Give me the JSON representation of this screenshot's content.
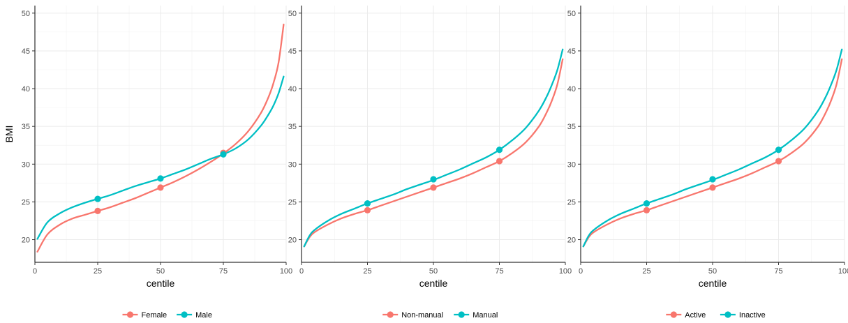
{
  "chart_data": [
    {
      "type": "line",
      "xlabel": "centile",
      "ylabel": "BMI",
      "xlim": [
        0,
        100
      ],
      "ylim": [
        17,
        51
      ],
      "x_ticks": [
        0,
        25,
        50,
        75,
        100
      ],
      "y_ticks": [
        20,
        25,
        30,
        35,
        40,
        45,
        50
      ],
      "grid": true,
      "legend_position": "bottom",
      "series": [
        {
          "name": "Female",
          "color": "#F8766D",
          "points": [
            [
              1,
              18.4
            ],
            [
              5,
              20.7
            ],
            [
              10,
              22.0
            ],
            [
              15,
              22.8
            ],
            [
              20,
              23.3
            ],
            [
              25,
              23.8
            ],
            [
              30,
              24.3
            ],
            [
              35,
              24.9
            ],
            [
              40,
              25.5
            ],
            [
              45,
              26.2
            ],
            [
              50,
              26.9
            ],
            [
              55,
              27.6
            ],
            [
              60,
              28.4
            ],
            [
              65,
              29.3
            ],
            [
              70,
              30.3
            ],
            [
              75,
              31.4
            ],
            [
              80,
              32.7
            ],
            [
              85,
              34.4
            ],
            [
              90,
              36.8
            ],
            [
              93,
              38.9
            ],
            [
              95,
              40.8
            ],
            [
              97,
              43.5
            ],
            [
              99,
              48.5
            ]
          ],
          "markers": [
            [
              25,
              23.8
            ],
            [
              50,
              26.9
            ],
            [
              75,
              31.5
            ]
          ]
        },
        {
          "name": "Male",
          "color": "#00BFC4",
          "points": [
            [
              1,
              20.1
            ],
            [
              5,
              22.3
            ],
            [
              10,
              23.5
            ],
            [
              15,
              24.3
            ],
            [
              20,
              24.9
            ],
            [
              25,
              25.4
            ],
            [
              30,
              25.9
            ],
            [
              35,
              26.5
            ],
            [
              40,
              27.1
            ],
            [
              45,
              27.6
            ],
            [
              50,
              28.1
            ],
            [
              55,
              28.7
            ],
            [
              60,
              29.3
            ],
            [
              65,
              30.0
            ],
            [
              70,
              30.7
            ],
            [
              75,
              31.3
            ],
            [
              80,
              32.1
            ],
            [
              85,
              33.3
            ],
            [
              90,
              35.1
            ],
            [
              93,
              36.6
            ],
            [
              95,
              37.8
            ],
            [
              97,
              39.4
            ],
            [
              99,
              41.6
            ]
          ],
          "markers": [
            [
              25,
              25.4
            ],
            [
              50,
              28.1
            ],
            [
              75,
              31.3
            ]
          ]
        }
      ]
    },
    {
      "type": "line",
      "xlabel": "centile",
      "ylabel": "",
      "xlim": [
        0,
        100
      ],
      "ylim": [
        17,
        51
      ],
      "x_ticks": [
        0,
        25,
        50,
        75,
        100
      ],
      "y_ticks": [
        20,
        25,
        30,
        35,
        40,
        45,
        50
      ],
      "grid": true,
      "legend_position": "bottom",
      "series": [
        {
          "name": "Non-manual",
          "color": "#F8766D",
          "points": [
            [
              1,
              19.1
            ],
            [
              3,
              20.3
            ],
            [
              5,
              21.0
            ],
            [
              10,
              22.0
            ],
            [
              15,
              22.8
            ],
            [
              20,
              23.4
            ],
            [
              25,
              23.9
            ],
            [
              30,
              24.5
            ],
            [
              35,
              25.1
            ],
            [
              40,
              25.7
            ],
            [
              45,
              26.3
            ],
            [
              50,
              26.9
            ],
            [
              55,
              27.5
            ],
            [
              60,
              28.1
            ],
            [
              65,
              28.8
            ],
            [
              70,
              29.6
            ],
            [
              75,
              30.4
            ],
            [
              80,
              31.5
            ],
            [
              85,
              32.9
            ],
            [
              90,
              35.0
            ],
            [
              93,
              36.9
            ],
            [
              95,
              38.5
            ],
            [
              97,
              40.6
            ],
            [
              99,
              43.9
            ]
          ],
          "markers": [
            [
              25,
              23.9
            ],
            [
              50,
              26.9
            ],
            [
              75,
              30.4
            ]
          ]
        },
        {
          "name": "Manual",
          "color": "#00BFC4",
          "points": [
            [
              1,
              19.1
            ],
            [
              3,
              20.5
            ],
            [
              5,
              21.3
            ],
            [
              10,
              22.5
            ],
            [
              15,
              23.4
            ],
            [
              20,
              24.1
            ],
            [
              25,
              24.8
            ],
            [
              30,
              25.4
            ],
            [
              35,
              26.0
            ],
            [
              40,
              26.7
            ],
            [
              45,
              27.3
            ],
            [
              50,
              27.9
            ],
            [
              55,
              28.6
            ],
            [
              60,
              29.3
            ],
            [
              65,
              30.1
            ],
            [
              70,
              30.9
            ],
            [
              75,
              31.9
            ],
            [
              80,
              33.2
            ],
            [
              85,
              34.8
            ],
            [
              90,
              37.1
            ],
            [
              93,
              39.0
            ],
            [
              95,
              40.6
            ],
            [
              97,
              42.5
            ],
            [
              99,
              45.2
            ]
          ],
          "markers": [
            [
              25,
              24.8
            ],
            [
              50,
              28.0
            ],
            [
              75,
              31.9
            ]
          ]
        }
      ]
    },
    {
      "type": "line",
      "xlabel": "centile",
      "ylabel": "",
      "xlim": [
        0,
        100
      ],
      "ylim": [
        17,
        51
      ],
      "x_ticks": [
        0,
        25,
        50,
        75,
        100
      ],
      "y_ticks": [
        20,
        25,
        30,
        35,
        40,
        45,
        50
      ],
      "grid": true,
      "legend_position": "bottom",
      "series": [
        {
          "name": "Active",
          "color": "#F8766D",
          "points": [
            [
              1,
              19.1
            ],
            [
              3,
              20.3
            ],
            [
              5,
              21.0
            ],
            [
              10,
              22.0
            ],
            [
              15,
              22.8
            ],
            [
              20,
              23.4
            ],
            [
              25,
              23.9
            ],
            [
              30,
              24.5
            ],
            [
              35,
              25.1
            ],
            [
              40,
              25.7
            ],
            [
              45,
              26.3
            ],
            [
              50,
              26.9
            ],
            [
              55,
              27.5
            ],
            [
              60,
              28.1
            ],
            [
              65,
              28.8
            ],
            [
              70,
              29.6
            ],
            [
              75,
              30.4
            ],
            [
              80,
              31.5
            ],
            [
              85,
              32.9
            ],
            [
              90,
              35.0
            ],
            [
              93,
              36.9
            ],
            [
              95,
              38.5
            ],
            [
              97,
              40.6
            ],
            [
              99,
              43.9
            ]
          ],
          "markers": [
            [
              25,
              23.9
            ],
            [
              50,
              26.9
            ],
            [
              75,
              30.4
            ]
          ]
        },
        {
          "name": "Inactive",
          "color": "#00BFC4",
          "points": [
            [
              1,
              19.1
            ],
            [
              3,
              20.5
            ],
            [
              5,
              21.3
            ],
            [
              10,
              22.5
            ],
            [
              15,
              23.4
            ],
            [
              20,
              24.1
            ],
            [
              25,
              24.8
            ],
            [
              30,
              25.4
            ],
            [
              35,
              26.0
            ],
            [
              40,
              26.7
            ],
            [
              45,
              27.3
            ],
            [
              50,
              27.9
            ],
            [
              55,
              28.6
            ],
            [
              60,
              29.3
            ],
            [
              65,
              30.1
            ],
            [
              70,
              30.9
            ],
            [
              75,
              31.9
            ],
            [
              80,
              33.2
            ],
            [
              85,
              34.8
            ],
            [
              90,
              37.1
            ],
            [
              93,
              39.0
            ],
            [
              95,
              40.6
            ],
            [
              97,
              42.5
            ],
            [
              99,
              45.2
            ]
          ],
          "markers": [
            [
              25,
              24.8
            ],
            [
              50,
              28.0
            ],
            [
              75,
              31.9
            ]
          ]
        }
      ]
    }
  ]
}
